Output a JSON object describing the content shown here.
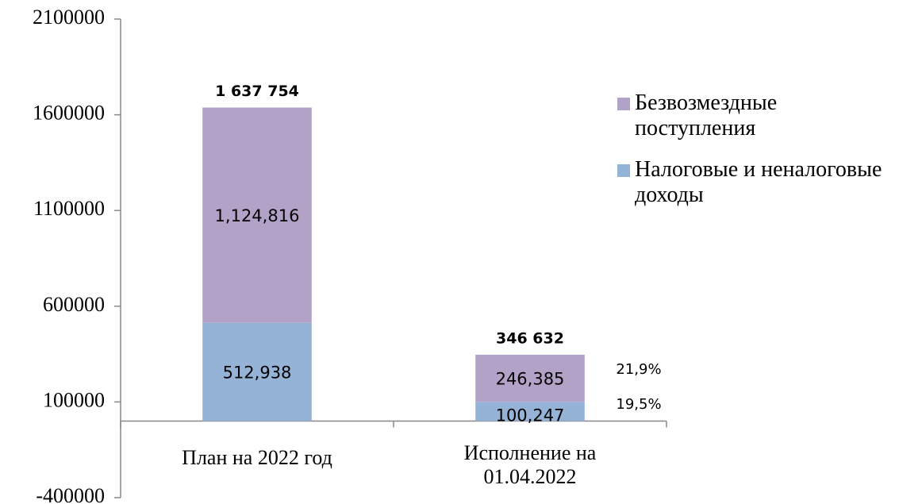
{
  "chart_data": {
    "type": "stacked_bar",
    "categories": [
      "План на 2022 год",
      "Исполнение на 01.04.2022"
    ],
    "series": [
      {
        "name": "Налоговые и неналоговые доходы",
        "color": "#95b3d7",
        "values": [
          512938,
          100247
        ],
        "value_labels": [
          "512,938",
          "100,247"
        ]
      },
      {
        "name": "Безвозмездные поступления",
        "color": "#b3a2c7",
        "values": [
          1124816,
          246385
        ],
        "value_labels": [
          "1,124,816",
          "246,385"
        ]
      }
    ],
    "totals": [
      1637754,
      346632
    ],
    "total_labels": [
      "1 637 754",
      "346 632"
    ],
    "annotations": [
      "21,9%",
      "19,5%"
    ],
    "ylim": [
      -400000,
      2100000
    ],
    "yticks": [
      -400000,
      100000,
      600000,
      1100000,
      1600000,
      2100000
    ],
    "legend": "right"
  }
}
